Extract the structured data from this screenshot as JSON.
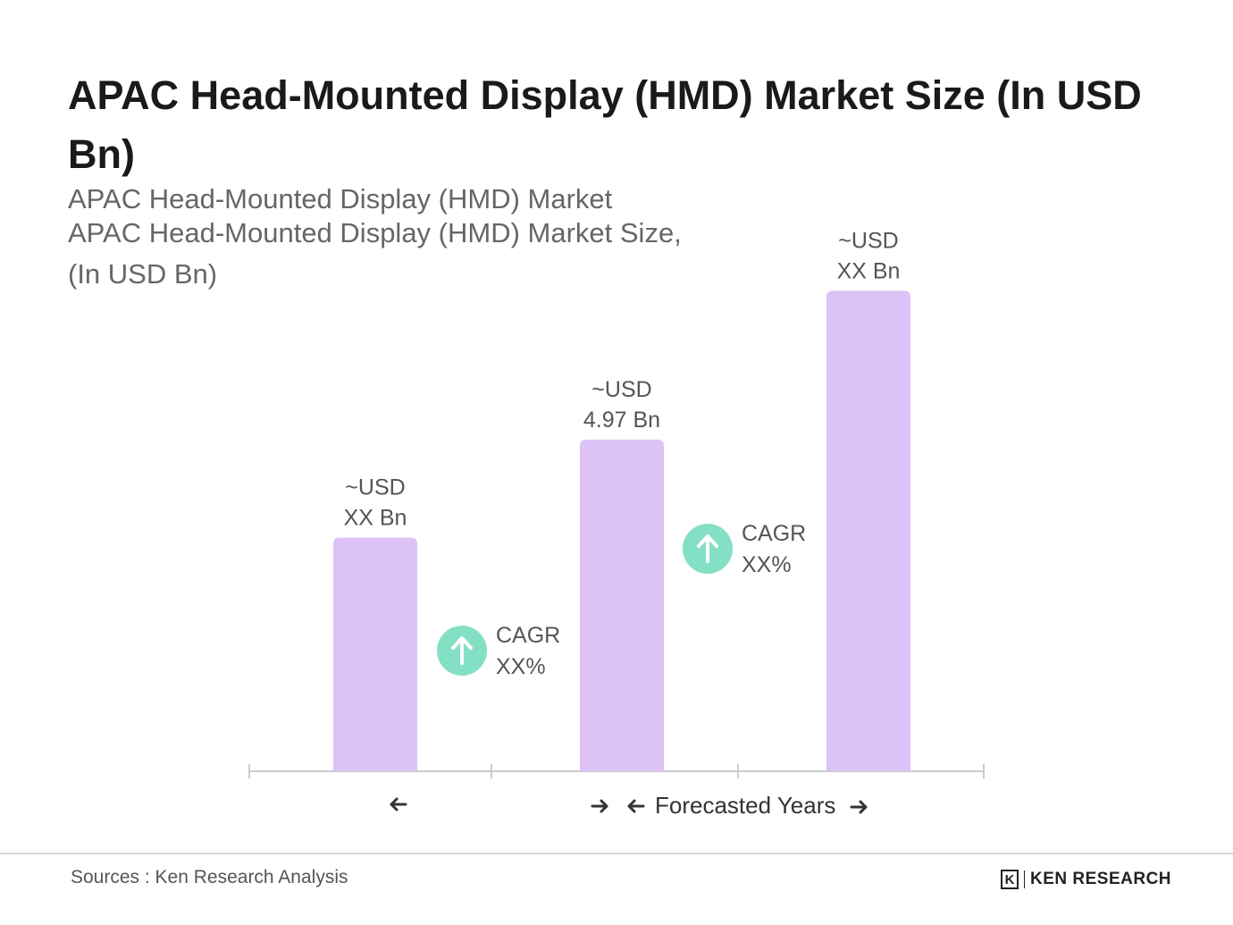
{
  "title": "APAC Head-Mounted Display (HMD) Market Size (In USD Bn)",
  "subtitle": {
    "line1": "APAC Head-Mounted Display (HMD) Market",
    "line2": "APAC Head-Mounted Display (HMD) Market Size,",
    "line3": "(In USD Bn)"
  },
  "chart_data": {
    "type": "bar",
    "categories": [
      "",
      "",
      ""
    ],
    "values": [
      3.5,
      4.97,
      7.2
    ],
    "ylim": [
      0,
      7.5
    ],
    "grid": false,
    "bar_color": "#dcc2f6",
    "value_labels": [
      {
        "line1": "~USD",
        "line2": "XX Bn"
      },
      {
        "line1": "~USD",
        "line2": "4.97 Bn"
      },
      {
        "line1": "~USD",
        "line2": "XX Bn"
      }
    ],
    "cagr_badges": [
      {
        "line1": "CAGR",
        "line2": "XX%",
        "icon": "arrow-up-icon"
      },
      {
        "line1": "CAGR",
        "line2": "XX%",
        "icon": "arrow-up-icon"
      }
    ],
    "badge_color": "#84e0c4",
    "axis_color": "#cccccc",
    "period_labels": {
      "historical": "",
      "forecast": "Forecasted Years"
    }
  },
  "footer": {
    "source": "Sources : Ken Research Analysis",
    "brand": "KEN RESEARCH",
    "brand_mark": "K"
  }
}
